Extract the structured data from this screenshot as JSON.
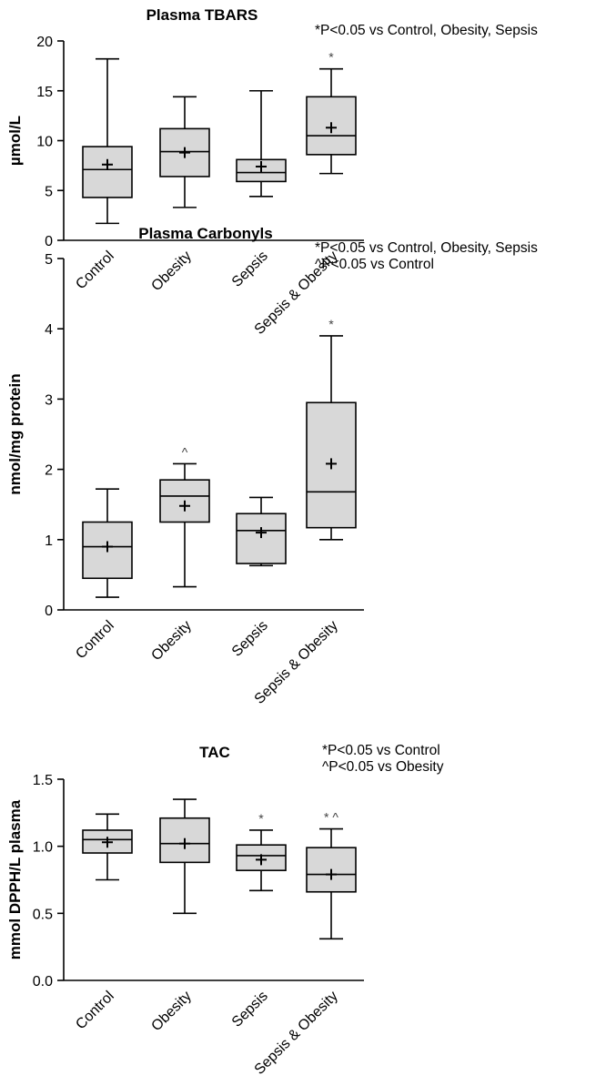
{
  "chart_data": [
    {
      "type": "box",
      "title": "Plasma TBARS",
      "ylabel": "µmol/L",
      "ylim": [
        0,
        20
      ],
      "yticks": [
        0,
        5,
        10,
        15,
        20
      ],
      "ytick_labels": [
        "0",
        "5",
        "10",
        "15",
        "20"
      ],
      "annotations": [
        "*P<0.05 vs Control, Obesity, Sepsis"
      ],
      "categories": [
        "Control",
        "Obesity",
        "Sepsis",
        "Sepsis & Obesity"
      ],
      "boxes": [
        {
          "min": 1.7,
          "q1": 4.3,
          "median": 7.1,
          "q3": 9.4,
          "max": 18.2,
          "mean": 7.6,
          "sig": ""
        },
        {
          "min": 3.3,
          "q1": 6.4,
          "median": 8.9,
          "q3": 11.2,
          "max": 14.4,
          "mean": 8.8,
          "sig": ""
        },
        {
          "min": 4.4,
          "q1": 5.9,
          "median": 6.8,
          "q3": 8.1,
          "max": 15.0,
          "mean": 7.4,
          "sig": ""
        },
        {
          "min": 6.7,
          "q1": 8.6,
          "median": 10.5,
          "q3": 14.4,
          "max": 17.2,
          "mean": 11.3,
          "sig": "*"
        }
      ]
    },
    {
      "type": "box",
      "title": "Plasma Carbonyls",
      "ylabel": "nmol/mg protein",
      "ylim": [
        0,
        5
      ],
      "yticks": [
        0,
        1,
        2,
        3,
        4,
        5
      ],
      "ytick_labels": [
        "0",
        "1",
        "2",
        "3",
        "4",
        "5"
      ],
      "annotations": [
        "*P<0.05 vs Control, Obesity, Sepsis",
        "^P<0.05 vs Control"
      ],
      "categories": [
        "Control",
        "Obesity",
        "Sepsis",
        "Sepsis & Obesity"
      ],
      "boxes": [
        {
          "min": 0.18,
          "q1": 0.45,
          "median": 0.9,
          "q3": 1.25,
          "max": 1.72,
          "mean": 0.9,
          "sig": ""
        },
        {
          "min": 0.33,
          "q1": 1.25,
          "median": 1.62,
          "q3": 1.85,
          "max": 2.08,
          "mean": 1.48,
          "sig": "^"
        },
        {
          "min": 0.63,
          "q1": 0.66,
          "median": 1.13,
          "q3": 1.37,
          "max": 1.6,
          "mean": 1.1,
          "sig": ""
        },
        {
          "min": 1.0,
          "q1": 1.17,
          "median": 1.68,
          "q3": 2.95,
          "max": 3.9,
          "mean": 2.08,
          "sig": "*"
        }
      ]
    },
    {
      "type": "box",
      "title": "TAC",
      "ylabel": "mmol DPPH/L plasma",
      "ylim": [
        0,
        1.5
      ],
      "yticks": [
        0,
        0.5,
        1.0,
        1.5
      ],
      "ytick_labels": [
        "0.0",
        "0.5",
        "1.0",
        "1.5"
      ],
      "annotations": [
        "*P<0.05 vs Control",
        "^P<0.05 vs Obesity"
      ],
      "categories": [
        "Control",
        "Obesity",
        "Sepsis",
        "Sepsis & Obesity"
      ],
      "boxes": [
        {
          "min": 0.75,
          "q1": 0.95,
          "median": 1.05,
          "q3": 1.12,
          "max": 1.24,
          "mean": 1.03,
          "sig": ""
        },
        {
          "min": 0.5,
          "q1": 0.88,
          "median": 1.02,
          "q3": 1.21,
          "max": 1.35,
          "mean": 1.02,
          "sig": ""
        },
        {
          "min": 0.67,
          "q1": 0.82,
          "median": 0.93,
          "q3": 1.01,
          "max": 1.12,
          "mean": 0.9,
          "sig": "*"
        },
        {
          "min": 0.31,
          "q1": 0.66,
          "median": 0.79,
          "q3": 0.99,
          "max": 1.13,
          "mean": 0.79,
          "sig": "*^"
        }
      ]
    }
  ],
  "colors": {
    "box_fill": "#d8d8d8",
    "stroke": "#000000",
    "sig_mark": "#444444"
  }
}
